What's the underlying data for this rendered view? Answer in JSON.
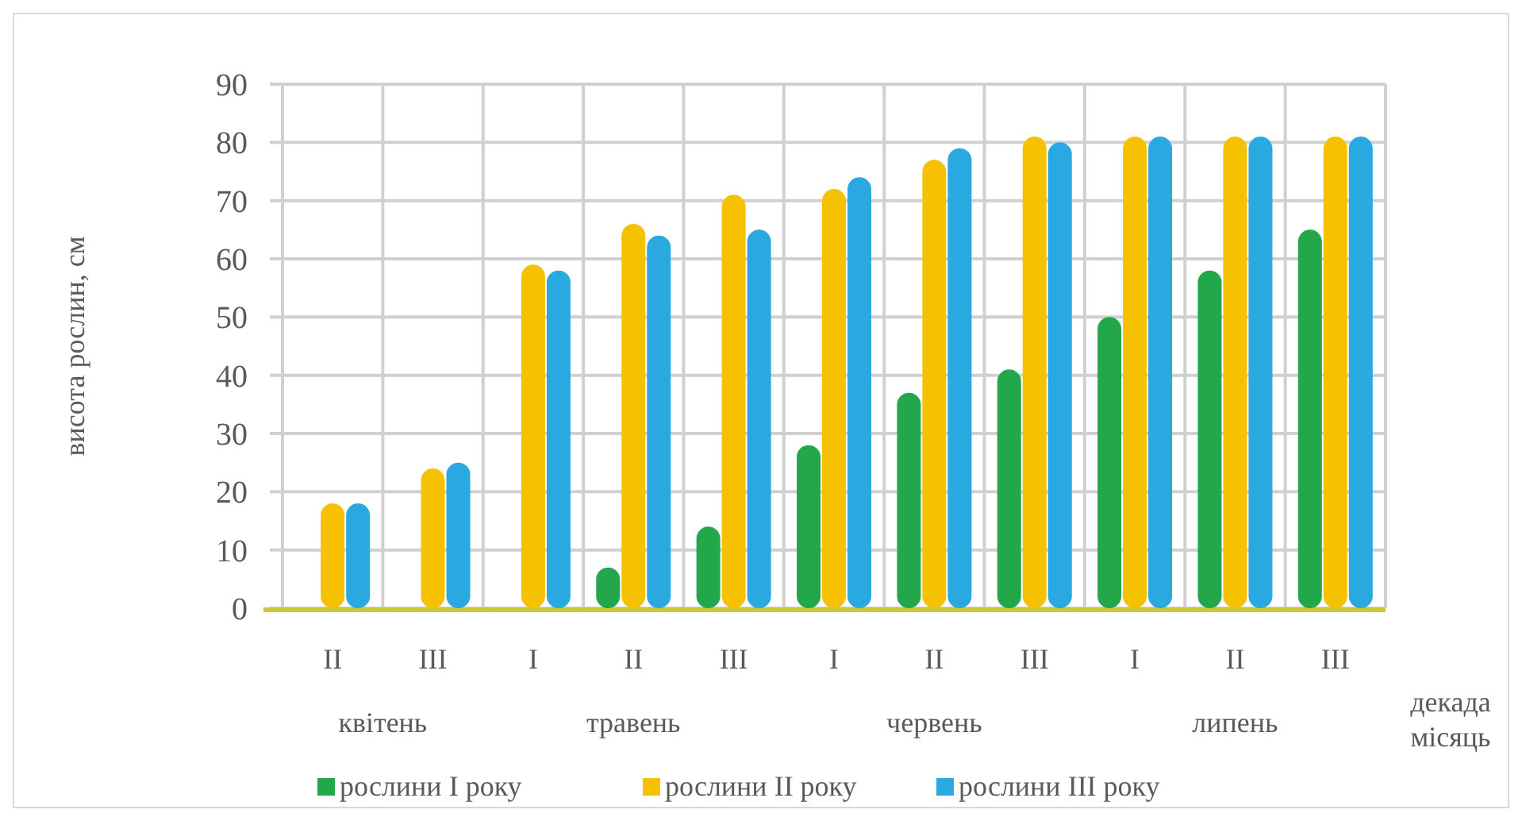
{
  "chart_data": {
    "type": "bar",
    "ylabel": "висота рослин, см",
    "xlabel": "декада місяць",
    "categories": [
      "II",
      "III",
      "I",
      "II",
      "III",
      "I",
      "II",
      "III",
      "I",
      "II",
      "III"
    ],
    "series": [
      {
        "name": "рослини I року",
        "color": "#22a84a",
        "values": [
          null,
          null,
          null,
          7,
          14,
          28,
          37,
          41,
          50,
          58,
          65
        ]
      },
      {
        "name": "рослини II року",
        "color": "#f5c100",
        "values": [
          18,
          24,
          59,
          66,
          71,
          72,
          77,
          81,
          81,
          81,
          81
        ]
      },
      {
        "name": "рослини III року",
        "color": "#2aa8e0",
        "values": [
          18,
          25,
          58,
          64,
          65,
          74,
          79,
          80,
          81,
          81,
          81
        ]
      }
    ],
    "ylim": [
      0,
      90
    ],
    "yticks": [
      0,
      10,
      20,
      30,
      40,
      50,
      60,
      70,
      80,
      90
    ],
    "grid": true,
    "legend": "bottom",
    "annotations": [
      "квітень",
      "травень",
      "червень",
      "липень"
    ]
  }
}
